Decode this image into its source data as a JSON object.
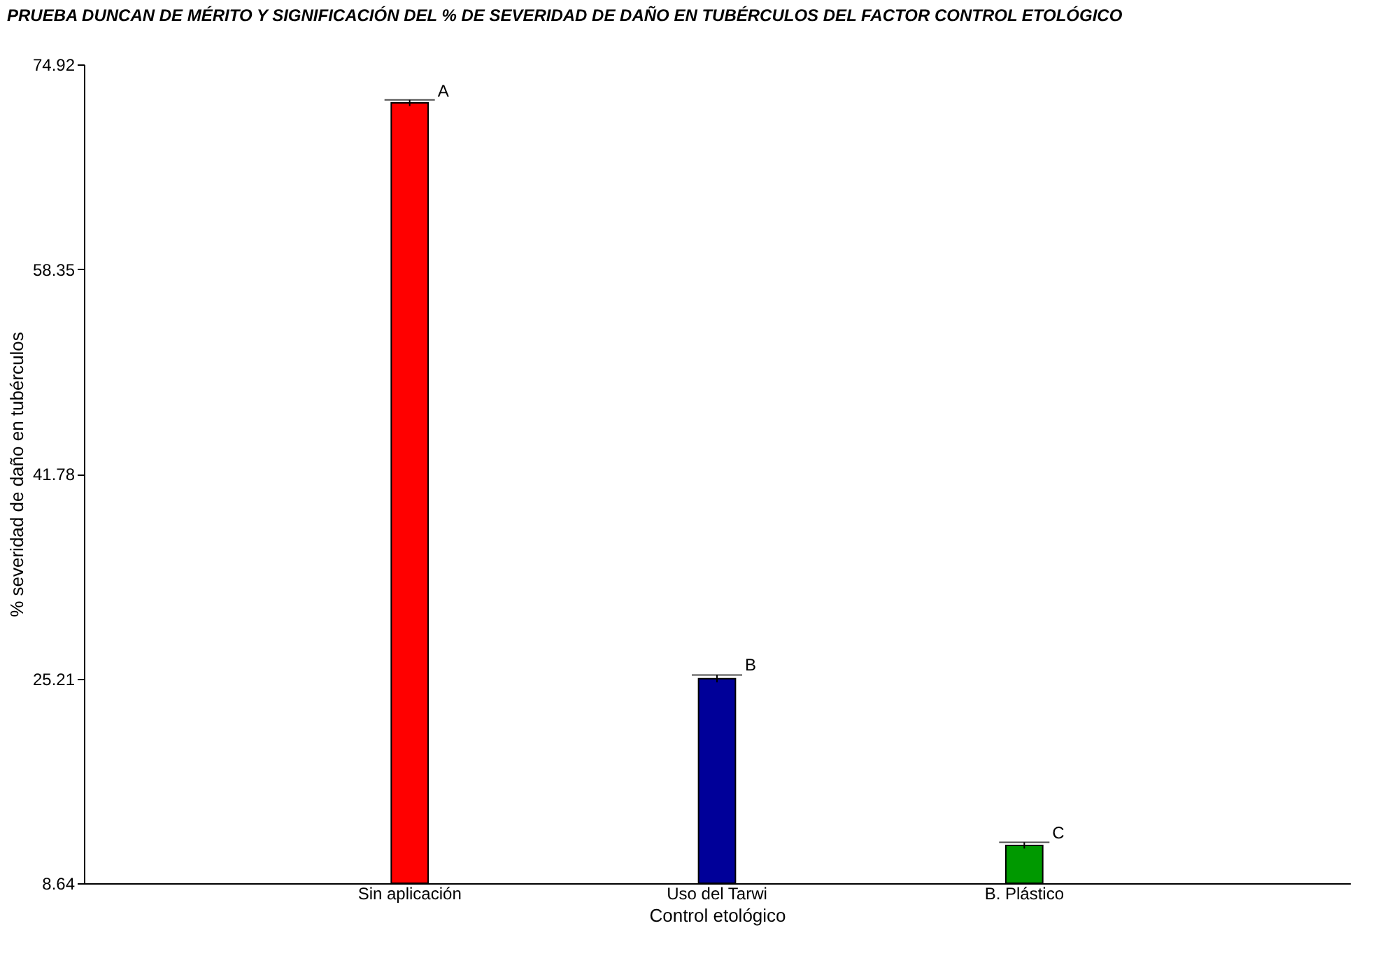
{
  "chart_data": {
    "type": "bar",
    "title": "PRUEBA DUNCAN DE MÉRITO Y SIGNIFICACIÓN DEL % DE SEVERIDAD DE DAÑO EN TUBÉRCULOS DEL FACTOR CONTROL ETOLÓGICO",
    "xlabel": "Control etológico",
    "ylabel": "% severidad de daño en tubérculos",
    "categories": [
      "Sin aplicación",
      "Uso del Tarwi",
      "B. Plástico"
    ],
    "values": [
      71.8,
      25.2,
      11.7
    ],
    "errors": [
      0.25,
      0.3,
      0.25
    ],
    "colors": [
      "#ff0000",
      "#000099",
      "#009900"
    ],
    "ylim": [
      8.64,
      74.92
    ],
    "yticks": [
      8.64,
      25.21,
      41.78,
      58.35,
      74.92
    ],
    "grid": false,
    "annotations": [
      {
        "text": "A",
        "x": "Sin aplicación",
        "y": 72.0
      },
      {
        "text": "B",
        "x": "Uso del Tarwi",
        "y": 25.5
      },
      {
        "text": "C",
        "x": "B. Plástico",
        "y": 11.95
      }
    ]
  }
}
